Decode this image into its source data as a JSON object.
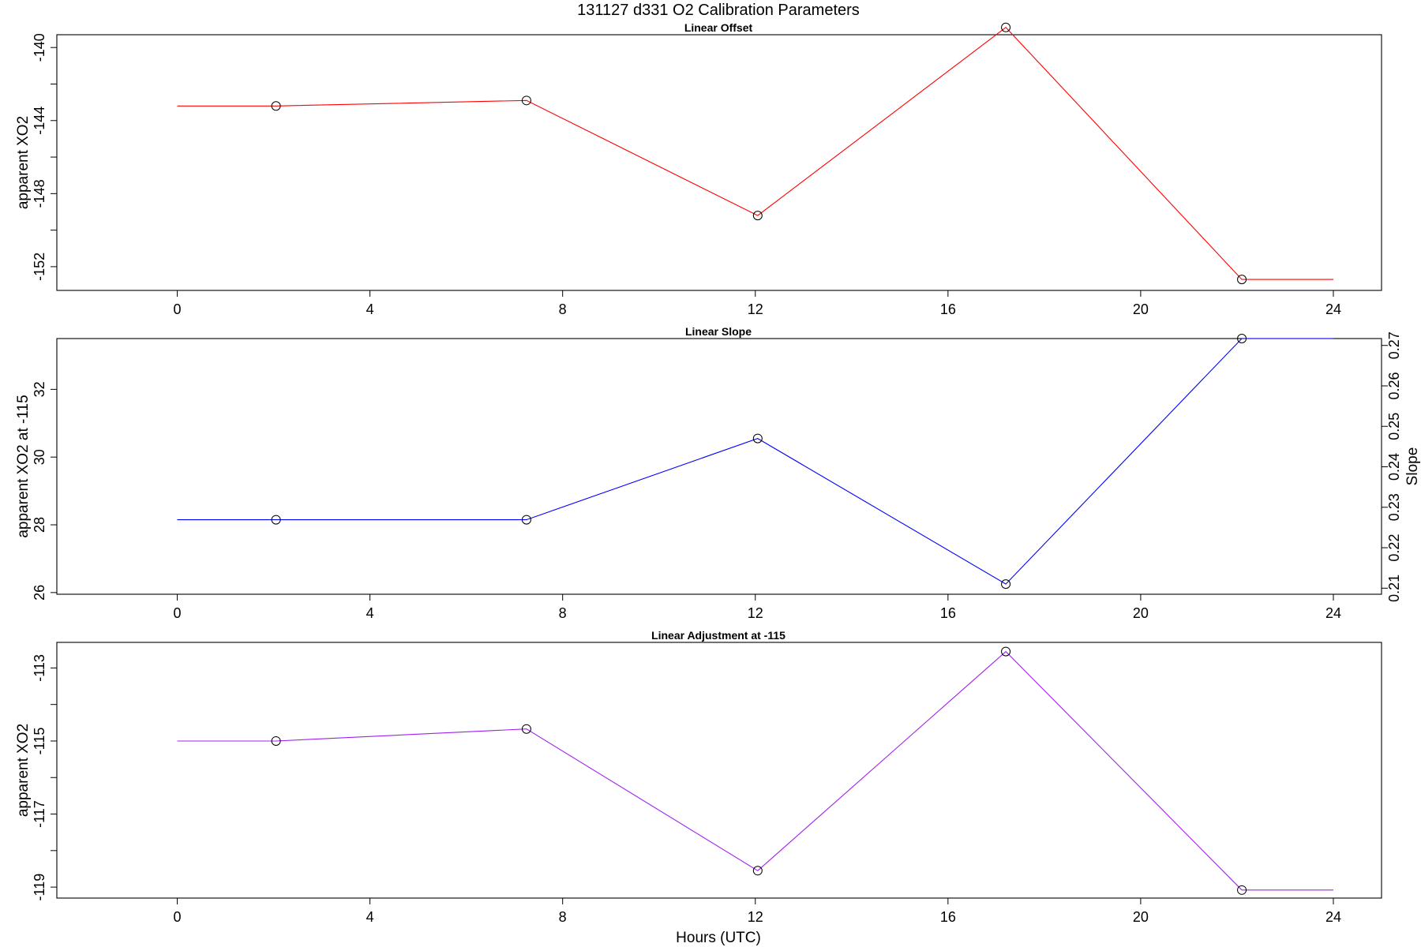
{
  "title": "131127   d331   O2 Calibration Parameters",
  "chart_data": [
    {
      "type": "line",
      "title": "Linear Offset",
      "xlabel": "",
      "ylabel": "apparent XO2",
      "xlim": [
        -2.5,
        25
      ],
      "ylim": [
        -153.3,
        -139.3
      ],
      "x_ticks": [
        0,
        4,
        8,
        12,
        16,
        20,
        24
      ],
      "y_ticks": [
        -140,
        -142,
        -144,
        -146,
        -148,
        -150,
        -152
      ],
      "y_tick_labels": [
        "-140",
        "",
        "-144",
        "",
        "-148",
        "",
        "-152"
      ],
      "color": "#ff0000",
      "line_x": [
        0,
        2.05,
        7.25,
        12.05,
        17.2,
        22.1,
        24
      ],
      "line_y": [
        -143.2,
        -143.2,
        -142.9,
        -149.2,
        -138.9,
        -152.7,
        -152.7
      ],
      "points_x": [
        2.05,
        7.25,
        12.05,
        17.2,
        22.1
      ],
      "points_y": [
        -143.2,
        -142.9,
        -149.2,
        -138.9,
        -152.7
      ]
    },
    {
      "type": "line",
      "title": "Linear Slope",
      "xlabel": "",
      "ylabel": "apparent XO2 at -115",
      "ylabel_right": "Slope",
      "xlim": [
        -2.5,
        25
      ],
      "ylim": [
        25.95,
        33.5
      ],
      "y_ticks": [
        26,
        28,
        30,
        32
      ],
      "y_tick_labels": [
        "26",
        "28",
        "30",
        "32"
      ],
      "y2lim": [
        0.2085,
        0.2717
      ],
      "y2_ticks": [
        0.21,
        0.22,
        0.23,
        0.24,
        0.25,
        0.26,
        0.27
      ],
      "y2_tick_labels": [
        "0.21",
        "0.22",
        "0.23",
        "0.24",
        "0.25",
        "0.26",
        "0.27"
      ],
      "x_ticks": [
        0,
        4,
        8,
        12,
        16,
        20,
        24
      ],
      "color": "#0000ff",
      "line_x": [
        0,
        2.05,
        7.25,
        12.05,
        17.2,
        22.1,
        24
      ],
      "line_y": [
        28.15,
        28.15,
        28.15,
        30.55,
        26.25,
        33.5,
        33.5
      ],
      "points_x": [
        2.05,
        7.25,
        12.05,
        17.2,
        22.1
      ],
      "points_y": [
        28.15,
        28.15,
        30.55,
        26.25,
        33.5
      ]
    },
    {
      "type": "line",
      "title": "Linear Adjustment at -115",
      "xlabel": "Hours (UTC)",
      "ylabel": "apparent XO2",
      "xlim": [
        -2.5,
        25
      ],
      "ylim": [
        -119.3,
        -112.3
      ],
      "x_ticks": [
        0,
        4,
        8,
        12,
        16,
        20,
        24
      ],
      "x_tick_labels": [
        "0",
        "4",
        "8",
        "12",
        "16",
        "20",
        "24"
      ],
      "y_ticks": [
        -113,
        -114,
        -115,
        -116,
        -117,
        -118,
        -119
      ],
      "y_tick_labels": [
        "-113",
        "",
        "-115",
        "",
        "-117",
        "",
        "-119"
      ],
      "color": "#a020f0",
      "line_x": [
        0,
        2.05,
        7.25,
        12.05,
        17.2,
        22.1,
        24
      ],
      "line_y": [
        -115.0,
        -115.0,
        -114.67,
        -118.55,
        -112.55,
        -119.08,
        -119.08
      ],
      "points_x": [
        2.05,
        7.25,
        12.05,
        17.2,
        22.1
      ],
      "points_y": [
        -115.0,
        -114.67,
        -118.55,
        -112.55,
        -119.08
      ]
    }
  ]
}
